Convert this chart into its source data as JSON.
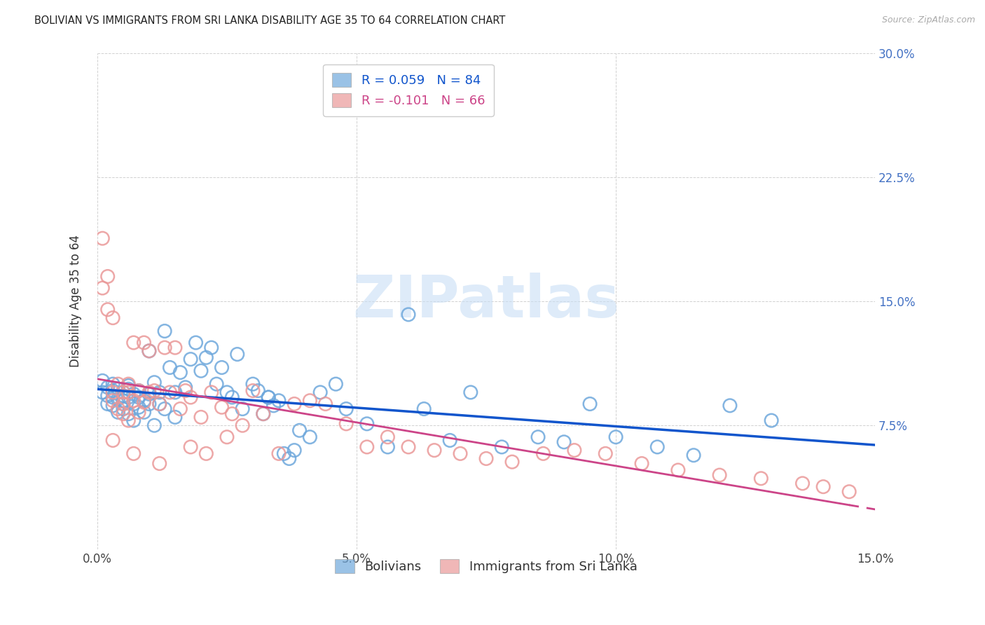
{
  "title": "BOLIVIAN VS IMMIGRANTS FROM SRI LANKA DISABILITY AGE 35 TO 64 CORRELATION CHART",
  "source": "Source: ZipAtlas.com",
  "ylabel": "Disability Age 35 to 64",
  "xlim": [
    0.0,
    0.15
  ],
  "ylim": [
    0.0,
    0.3
  ],
  "xticks": [
    0.0,
    0.05,
    0.1,
    0.15
  ],
  "xtick_labels": [
    "0.0%",
    "5.0%",
    "10.0%",
    "15.0%"
  ],
  "yticks": [
    0.0,
    0.075,
    0.15,
    0.225,
    0.3
  ],
  "ytick_labels_right": [
    "",
    "7.5%",
    "15.0%",
    "22.5%",
    "30.0%"
  ],
  "bolivians_R": 0.059,
  "bolivians_N": 84,
  "srilanka_R": -0.101,
  "srilanka_N": 66,
  "blue_color": "#6fa8dc",
  "pink_color": "#ea9999",
  "blue_line_color": "#1155cc",
  "pink_line_color": "#cc4488",
  "watermark": "ZIPatlas",
  "bolivians_x": [
    0.001,
    0.001,
    0.002,
    0.002,
    0.002,
    0.003,
    0.003,
    0.003,
    0.003,
    0.004,
    0.004,
    0.004,
    0.005,
    0.005,
    0.005,
    0.005,
    0.005,
    0.006,
    0.006,
    0.006,
    0.006,
    0.007,
    0.007,
    0.007,
    0.008,
    0.008,
    0.008,
    0.009,
    0.009,
    0.01,
    0.01,
    0.01,
    0.011,
    0.011,
    0.012,
    0.012,
    0.013,
    0.013,
    0.014,
    0.015,
    0.015,
    0.016,
    0.017,
    0.018,
    0.019,
    0.02,
    0.021,
    0.022,
    0.023,
    0.024,
    0.025,
    0.026,
    0.027,
    0.028,
    0.03,
    0.031,
    0.032,
    0.033,
    0.035,
    0.037,
    0.039,
    0.041,
    0.043,
    0.046,
    0.048,
    0.052,
    0.056,
    0.06,
    0.063,
    0.068,
    0.072,
    0.078,
    0.085,
    0.09,
    0.095,
    0.1,
    0.108,
    0.115,
    0.122,
    0.13,
    0.033,
    0.034,
    0.036,
    0.038
  ],
  "bolivians_y": [
    0.095,
    0.102,
    0.098,
    0.093,
    0.088,
    0.092,
    0.096,
    0.1,
    0.087,
    0.083,
    0.091,
    0.097,
    0.09,
    0.095,
    0.088,
    0.085,
    0.093,
    0.092,
    0.097,
    0.082,
    0.099,
    0.088,
    0.094,
    0.078,
    0.086,
    0.092,
    0.096,
    0.083,
    0.09,
    0.12,
    0.088,
    0.094,
    0.075,
    0.101,
    0.088,
    0.095,
    0.085,
    0.132,
    0.11,
    0.095,
    0.08,
    0.107,
    0.098,
    0.115,
    0.125,
    0.108,
    0.116,
    0.122,
    0.1,
    0.11,
    0.095,
    0.092,
    0.118,
    0.085,
    0.1,
    0.096,
    0.082,
    0.092,
    0.09,
    0.055,
    0.072,
    0.068,
    0.095,
    0.1,
    0.085,
    0.076,
    0.062,
    0.142,
    0.085,
    0.066,
    0.095,
    0.062,
    0.068,
    0.065,
    0.088,
    0.068,
    0.062,
    0.057,
    0.087,
    0.078,
    0.092,
    0.087,
    0.058,
    0.06
  ],
  "srilanka_x": [
    0.001,
    0.001,
    0.002,
    0.002,
    0.003,
    0.003,
    0.003,
    0.004,
    0.004,
    0.005,
    0.005,
    0.005,
    0.006,
    0.006,
    0.006,
    0.007,
    0.007,
    0.008,
    0.008,
    0.009,
    0.009,
    0.01,
    0.01,
    0.011,
    0.012,
    0.013,
    0.014,
    0.015,
    0.016,
    0.017,
    0.018,
    0.02,
    0.022,
    0.024,
    0.026,
    0.028,
    0.03,
    0.032,
    0.035,
    0.038,
    0.041,
    0.044,
    0.048,
    0.052,
    0.056,
    0.06,
    0.065,
    0.07,
    0.075,
    0.08,
    0.086,
    0.092,
    0.098,
    0.105,
    0.112,
    0.12,
    0.128,
    0.136,
    0.14,
    0.145,
    0.003,
    0.007,
    0.012,
    0.018,
    0.021,
    0.025
  ],
  "srilanka_y": [
    0.188,
    0.158,
    0.145,
    0.165,
    0.14,
    0.095,
    0.09,
    0.1,
    0.085,
    0.095,
    0.088,
    0.082,
    0.1,
    0.095,
    0.078,
    0.09,
    0.125,
    0.096,
    0.083,
    0.089,
    0.125,
    0.095,
    0.12,
    0.096,
    0.088,
    0.122,
    0.095,
    0.122,
    0.085,
    0.096,
    0.092,
    0.08,
    0.095,
    0.086,
    0.082,
    0.075,
    0.096,
    0.082,
    0.058,
    0.088,
    0.09,
    0.088,
    0.076,
    0.062,
    0.068,
    0.062,
    0.06,
    0.058,
    0.055,
    0.053,
    0.058,
    0.06,
    0.058,
    0.052,
    0.048,
    0.045,
    0.043,
    0.04,
    0.038,
    0.035,
    0.066,
    0.058,
    0.052,
    0.062,
    0.058,
    0.068
  ]
}
